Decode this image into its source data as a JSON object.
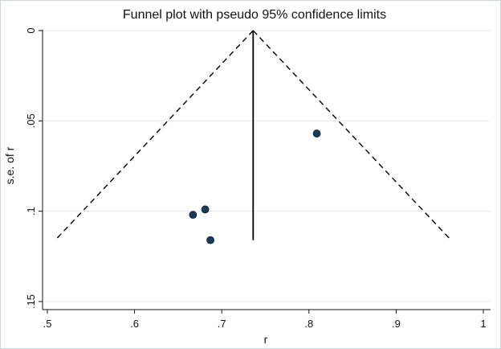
{
  "chart_data": {
    "type": "scatter",
    "title": "Funnel plot with pseudo 95% confidence limits",
    "xlabel": "r",
    "ylabel": "s.e. of r",
    "xlim": [
      0.5,
      1.0
    ],
    "ylim": [
      0.0,
      0.15
    ],
    "y_reversed": true,
    "grid": true,
    "x_ticks": [
      0.5,
      0.6,
      0.7,
      0.8,
      0.9,
      1.0
    ],
    "x_tick_labels": [
      ".5",
      ".6",
      ".7",
      ".8",
      ".9",
      "1"
    ],
    "y_ticks": [
      0,
      0.05,
      0.1,
      0.15
    ],
    "y_tick_labels": [
      "0",
      ".05",
      ".1",
      ".15"
    ],
    "pooled_estimate": 0.736,
    "funnel_max_se": 0.116,
    "funnel_limits": {
      "lower": [
        [
          0.736,
          0.0
        ],
        [
          0.509,
          0.116
        ]
      ],
      "upper": [
        [
          0.736,
          0.0
        ],
        [
          0.963,
          0.116
        ]
      ]
    },
    "points": [
      {
        "x": 0.809,
        "y": 0.057
      },
      {
        "x": 0.681,
        "y": 0.099
      },
      {
        "x": 0.667,
        "y": 0.102
      },
      {
        "x": 0.687,
        "y": 0.116
      }
    ],
    "colors": {
      "points": "#1a3a5c",
      "grid": "#e6eaed",
      "axis": "#111111",
      "background": "#ffffff"
    }
  }
}
